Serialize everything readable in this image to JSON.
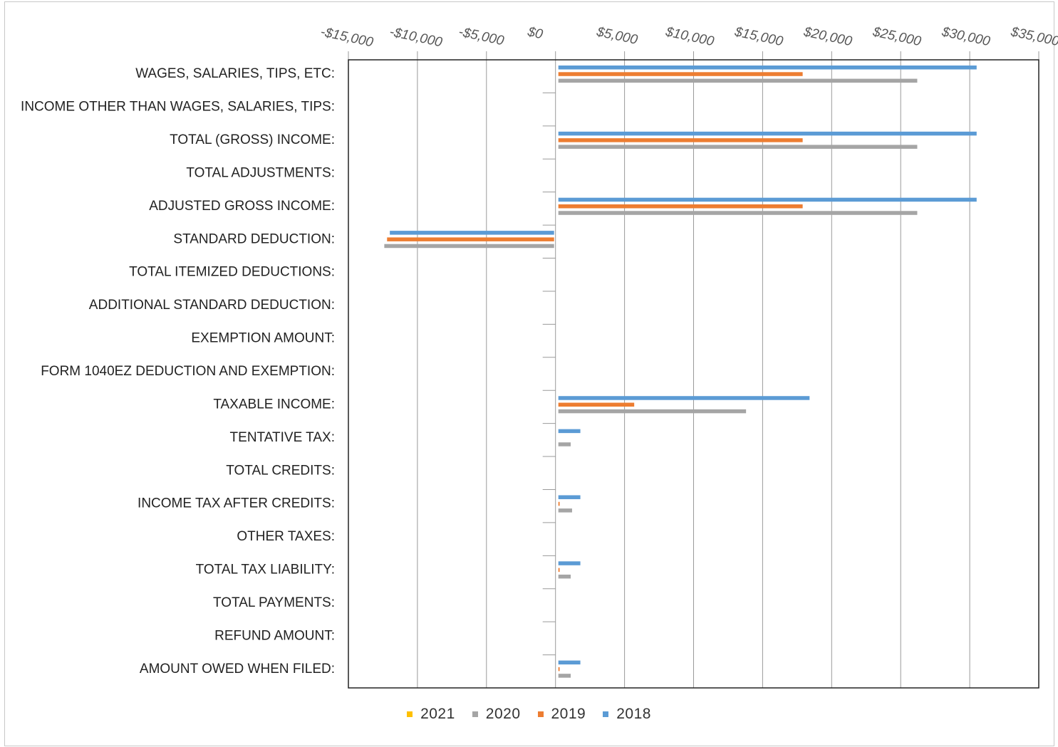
{
  "chart_data": {
    "type": "bar",
    "orientation": "horizontal",
    "categories": [
      "WAGES, SALARIES, TIPS, ETC:",
      "INCOME OTHER THAN WAGES, SALARIES, TIPS:",
      "TOTAL (GROSS) INCOME:",
      "TOTAL ADJUSTMENTS:",
      "ADJUSTED GROSS INCOME:",
      "STANDARD DEDUCTION:",
      "TOTAL ITEMIZED DEDUCTIONS:",
      "ADDITIONAL STANDARD DEDUCTION:",
      "EXEMPTION AMOUNT:",
      "FORM 1040EZ DEDUCTION AND EXEMPTION:",
      "TAXABLE INCOME:",
      "TENTATIVE TAX:",
      "TOTAL CREDITS:",
      "INCOME TAX AFTER CREDITS:",
      "OTHER TAXES:",
      "TOTAL TAX LIABILITY:",
      "TOTAL PAYMENTS:",
      "REFUND AMOUNT:",
      "AMOUNT OWED WHEN FILED:"
    ],
    "series": [
      {
        "name": "2018",
        "color": "#5b9bd5",
        "values": [
          30500,
          0,
          30500,
          0,
          30500,
          -12000,
          0,
          0,
          0,
          0,
          18400,
          1800,
          0,
          1800,
          0,
          1800,
          0,
          0,
          1800
        ]
      },
      {
        "name": "2019",
        "color": "#ed7d31",
        "values": [
          17900,
          0,
          17900,
          0,
          17900,
          -12200,
          0,
          0,
          0,
          0,
          5700,
          0,
          0,
          300,
          0,
          300,
          0,
          0,
          300
        ]
      },
      {
        "name": "2020",
        "color": "#a5a5a5",
        "values": [
          26200,
          0,
          26200,
          0,
          26200,
          -12400,
          0,
          0,
          0,
          0,
          13800,
          1100,
          0,
          1200,
          0,
          1100,
          0,
          0,
          1100
        ]
      },
      {
        "name": "2021",
        "color": "#ffc000",
        "values": [
          0,
          0,
          0,
          0,
          0,
          0,
          0,
          0,
          0,
          0,
          0,
          0,
          0,
          0,
          0,
          0,
          0,
          0,
          0
        ]
      }
    ],
    "xlim": [
      -15000,
      35000
    ],
    "xticks": [
      -15000,
      -10000,
      -5000,
      0,
      5000,
      10000,
      15000,
      20000,
      25000,
      30000,
      35000
    ],
    "tick_labels": [
      "-$15,000",
      "-$10,000",
      "-$5,000",
      "$0",
      "$5,000",
      "$10,000",
      "$15,000",
      "$20,000",
      "$25,000",
      "$30,000",
      "$35,000"
    ],
    "axis_position": "top",
    "grid": true,
    "legend_position": "bottom",
    "legend_order": [
      "2021",
      "2020",
      "2019",
      "2018"
    ],
    "title": "",
    "xlabel": "",
    "ylabel": ""
  }
}
